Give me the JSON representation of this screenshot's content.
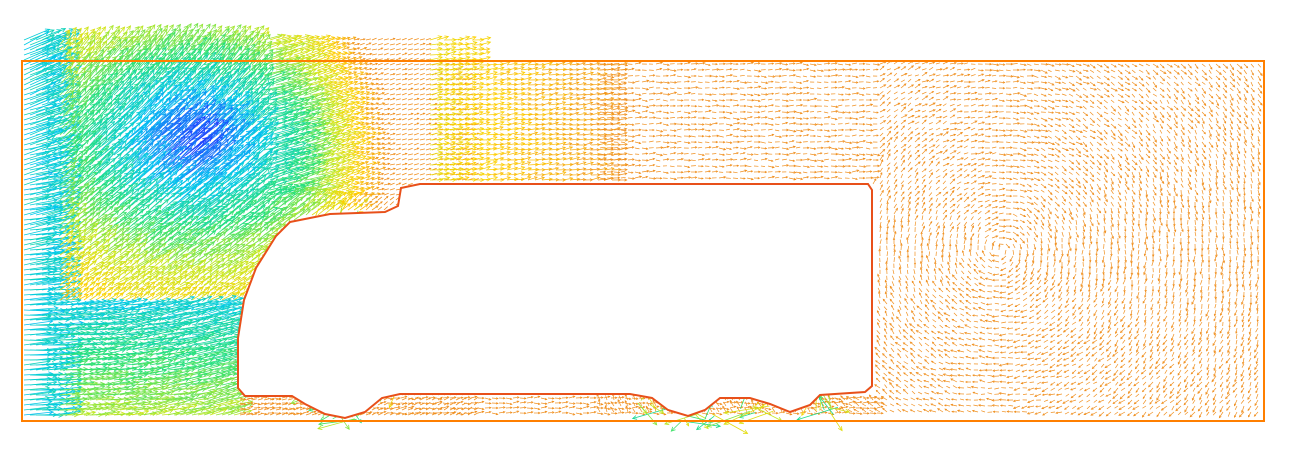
{
  "figure": {
    "kind": "vector-field",
    "description_visible_text": "",
    "colors": {
      "background": "#ffffff",
      "domain_outline": "#ff7f00",
      "body_outline": "#e8501a",
      "far_field_vectors": "#f09020",
      "colormap": [
        "#5a00c8",
        "#1e3cff",
        "#00c8f0",
        "#24e07a",
        "#c8e81c",
        "#ffd000",
        "#f09020"
      ]
    }
  }
}
